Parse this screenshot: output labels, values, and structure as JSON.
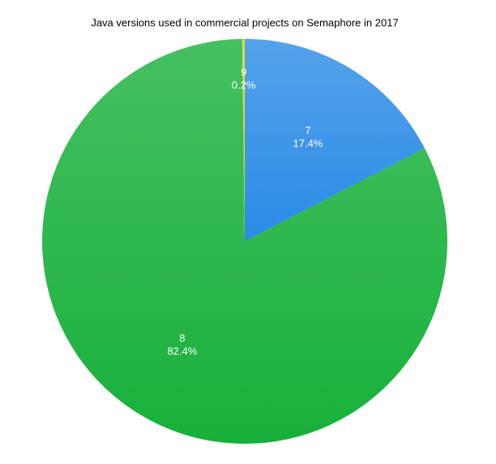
{
  "chart_data": {
    "type": "pie",
    "title": "Java versions used in commercial projects on Semaphore in 2017",
    "categories": [
      "7",
      "8",
      "9"
    ],
    "values": [
      17.4,
      82.4,
      0.2
    ],
    "value_labels": [
      "17.4%",
      "82.4%",
      "0.2%"
    ],
    "colors": [
      "#2a8be6",
      "#17b03a",
      "#d6d214"
    ]
  }
}
